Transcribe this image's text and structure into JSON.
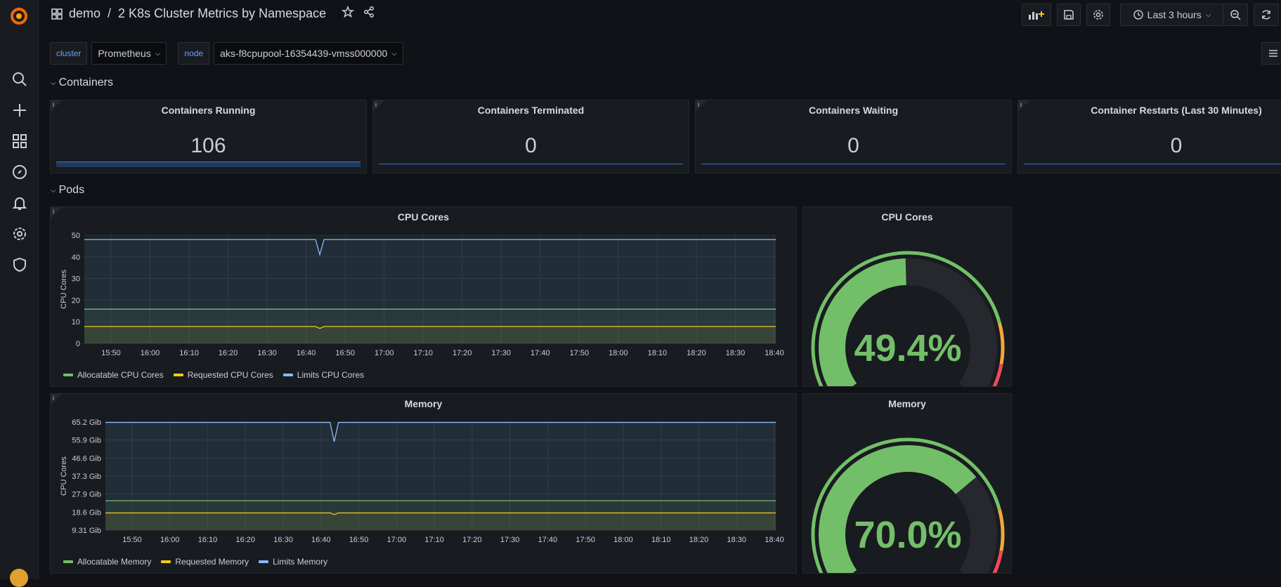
{
  "breadcrumb": {
    "folder": "demo",
    "separator": "/",
    "dashboard": "2 K8s Cluster Metrics by Namespace"
  },
  "toolbar": {
    "time_range": "Last 3 hours"
  },
  "variables": [
    {
      "label": "cluster",
      "value": "Prometheus"
    },
    {
      "label": "node",
      "value": "aks-f8cpupool-16354439-vmss000000"
    }
  ],
  "rows": {
    "containers": "Containers",
    "pods": "Pods"
  },
  "stats": [
    {
      "title": "Containers Running",
      "value": "106"
    },
    {
      "title": "Containers Terminated",
      "value": "0"
    },
    {
      "title": "Containers Waiting",
      "value": "0"
    },
    {
      "title": "Container Restarts (Last 30 Minutes)",
      "value": "0"
    }
  ],
  "colors": {
    "green": "#73bf69",
    "yellow": "#f2cc0c",
    "cyan": "#8ab8ff",
    "red": "#f2495c",
    "blue": "#3274d9"
  },
  "chart_data": [
    {
      "type": "line",
      "title": "CPU Cores",
      "ylabel": "CPU Cores",
      "ylim": [
        0,
        50
      ],
      "yticks": [
        "50",
        "40",
        "30",
        "20",
        "10",
        "0"
      ],
      "xticks": [
        "15:50",
        "16:00",
        "16:10",
        "16:20",
        "16:30",
        "16:40",
        "16:50",
        "17:00",
        "17:10",
        "17:20",
        "17:30",
        "17:40",
        "17:50",
        "18:00",
        "18:10",
        "18:20",
        "18:30",
        "18:40"
      ],
      "series": [
        {
          "name": "Allocatable CPU Cores",
          "color": "#73bf69",
          "values": [
            15.8,
            15.8,
            15.8,
            15.8
          ]
        },
        {
          "name": "Requested CPU Cores",
          "color": "#f2cc0c",
          "values": [
            7.8,
            7.8,
            6.9,
            7.8,
            7.8
          ]
        },
        {
          "name": "Limits CPU Cores",
          "color": "#8ab8ff",
          "values": [
            48,
            48,
            41,
            48,
            48
          ]
        }
      ]
    },
    {
      "type": "line",
      "title": "Memory",
      "ylabel": "CPU Cores",
      "ylim": [
        9.31,
        65.2
      ],
      "yticks": [
        "65.2 Gib",
        "55.9 Gib",
        "46.6 Gib",
        "37.3 Gib",
        "27.9 Gib",
        "18.6 Gib",
        "9.31 Gib"
      ],
      "xticks": [
        "15:50",
        "16:00",
        "16:10",
        "16:20",
        "16:30",
        "16:40",
        "16:50",
        "17:00",
        "17:10",
        "17:20",
        "17:30",
        "17:40",
        "17:50",
        "18:00",
        "18:10",
        "18:20",
        "18:30",
        "18:40"
      ],
      "series": [
        {
          "name": "Allocatable Memory",
          "color": "#73bf69",
          "values": [
            24.5,
            24.5,
            24.5
          ]
        },
        {
          "name": "Requested Memory",
          "color": "#f2cc0c",
          "values": [
            18.2,
            18.2,
            17.4,
            18.2,
            18.2
          ]
        },
        {
          "name": "Limits Memory",
          "color": "#8ab8ff",
          "values": [
            65,
            65,
            55,
            65,
            65
          ]
        }
      ]
    },
    {
      "type": "gauge",
      "title": "CPU Cores",
      "value": 49.4,
      "display": "49.4%"
    },
    {
      "type": "gauge",
      "title": "Memory",
      "value": 70.0,
      "display": "70.0%"
    }
  ]
}
